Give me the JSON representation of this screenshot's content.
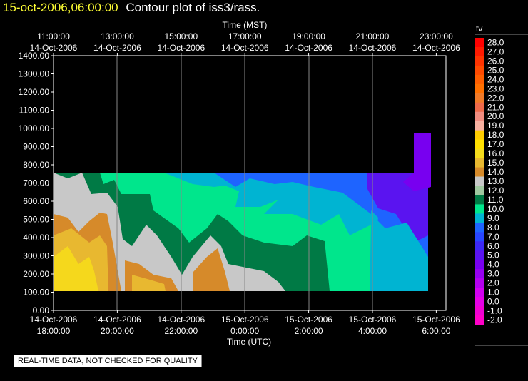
{
  "header": {
    "timestamp": "15-oct-2006,06:00:00",
    "plot_title": "Contour plot of iss3/rass."
  },
  "notice": "REAL-TIME DATA, NOT CHECKED FOR QUALITY",
  "colors": {
    "background": "#000000",
    "title_timestamp": "#ffff33"
  },
  "chart_data": {
    "type": "heatmap",
    "title": "Contour plot of iss3/rass.",
    "variable_label": "tv",
    "top_axis": {
      "label": "Time (MST)",
      "ticks": [
        {
          "time": "11:00:00",
          "date": "14-Oct-2006"
        },
        {
          "time": "13:00:00",
          "date": "14-Oct-2006"
        },
        {
          "time": "15:00:00",
          "date": "14-Oct-2006"
        },
        {
          "time": "17:00:00",
          "date": "14-Oct-2006"
        },
        {
          "time": "19:00:00",
          "date": "14-Oct-2006"
        },
        {
          "time": "21:00:00",
          "date": "14-Oct-2006"
        },
        {
          "time": "23:00:00",
          "date": "14-Oct-2006"
        }
      ]
    },
    "bottom_axis": {
      "label": "Time (UTC)",
      "ticks": [
        {
          "date": "14-Oct-2006",
          "time": "18:00:00"
        },
        {
          "date": "14-Oct-2006",
          "time": "20:00:00"
        },
        {
          "date": "14-Oct-2006",
          "time": "22:00:00"
        },
        {
          "date": "15-Oct-2006",
          "time": "0:00:00"
        },
        {
          "date": "15-Oct-2006",
          "time": "2:00:00"
        },
        {
          "date": "15-Oct-2006",
          "time": "4:00:00"
        },
        {
          "date": "15-Oct-2006",
          "time": "6:00:00"
        }
      ]
    },
    "x_range_utc_hours": [
      18,
      30
    ],
    "y_axis": {
      "ylim": [
        0,
        1400
      ],
      "ticks": [
        "0.00",
        "100.00",
        "200.00",
        "300.00",
        "400.00",
        "500.00",
        "600.00",
        "700.00",
        "800.00",
        "900.00",
        "1000.00",
        "1100.00",
        "1200.00",
        "1300.00",
        "1400.00"
      ]
    },
    "grid": "vertical",
    "colorbar": {
      "label": "tv",
      "levels": [
        "28.0",
        "27.0",
        "26.0",
        "25.0",
        "24.0",
        "23.0",
        "22.0",
        "21.0",
        "20.0",
        "19.0",
        "18.0",
        "17.0",
        "16.0",
        "15.0",
        "14.0",
        "13.0",
        "12.0",
        "11.0",
        "10.0",
        "9.0",
        "8.0",
        "7.0",
        "6.0",
        "5.0",
        "4.0",
        "3.0",
        "2.0",
        "1.0",
        "0.0",
        "-1.0",
        "-2.0"
      ],
      "colors": [
        "#ff0000",
        "#ff1a00",
        "#ff3300",
        "#ff4a00",
        "#ff5e00",
        "#ff7000",
        "#f07a28",
        "#ee6a4a",
        "#f08c80",
        "#f7b0a0",
        "#ffcc00",
        "#ffe000",
        "#f5dc1c",
        "#e8b830",
        "#d68a2a",
        "#c8c8c8",
        "#a0c8a0",
        "#007a45",
        "#00e68c",
        "#00b4d2",
        "#1e64ff",
        "#2846ff",
        "#3c28f5",
        "#5a14f0",
        "#7800f0",
        "#9600f0",
        "#b400f0",
        "#d200f0",
        "#e600e6",
        "#f000d2",
        "#ff00c8"
      ]
    },
    "contour_fields": [
      {
        "level": "15.0-16.0",
        "color": "#f5d81c",
        "region": "lowest layer, 18:00-19:30 UTC"
      },
      {
        "level": "14.0-15.0",
        "color": "#e8b830",
        "region": "low layer, 18:00-20:00 and 20:30-23:00 UTC"
      },
      {
        "level": "13.0-14.0",
        "color": "#d68a2a",
        "region": "low layer, 18:00-23:00 UTC"
      },
      {
        "level": "12.0-13.0",
        "color": "#c8c8c8",
        "region": "lower layer, 18:00-1:30 UTC"
      },
      {
        "level": "11.0-12.0",
        "color": "#007a45",
        "region": "mid layer, 20:00-2:30 UTC"
      },
      {
        "level": "10.0-11.0",
        "color": "#00e68c",
        "region": "upper layer, 19:00-4:00 UTC"
      },
      {
        "level": "9.0-10.0",
        "color": "#00b4d2",
        "region": "upper layer, 23:00-6:00 UTC"
      },
      {
        "level": "7.0-8.0",
        "color": "#1e64ff",
        "region": "top layer, 0:00-6:00 UTC"
      },
      {
        "level": "5.0-6.0",
        "color": "#5a14f0",
        "region": "top layer, 3:00-6:00 UTC"
      },
      {
        "level": "4.0-5.0",
        "color": "#7800f0",
        "region": "top, 5:30-6:00 UTC, up to 970"
      }
    ]
  }
}
